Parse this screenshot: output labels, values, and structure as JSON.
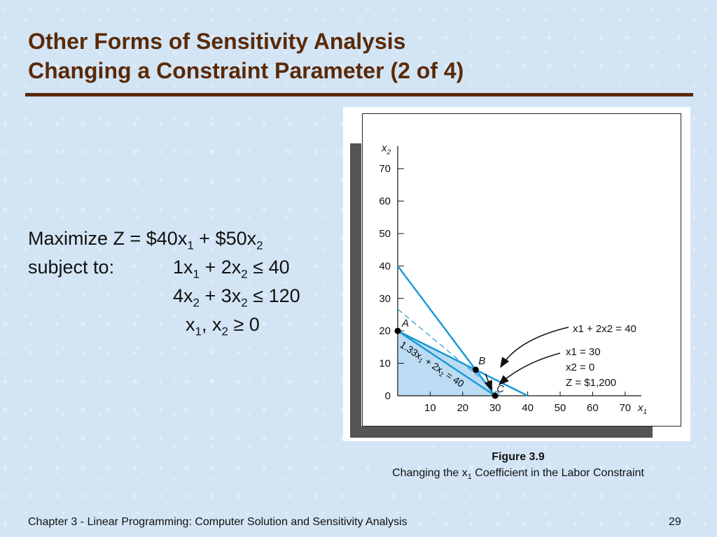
{
  "slide": {
    "title_line1": "Other Forms of Sensitivity Analysis",
    "title_line2": "Changing a Constraint Parameter (2 of 4)",
    "footer": "Chapter 3 - Linear Programming:  Computer Solution and Sensitivity Analysis",
    "page_number": "29"
  },
  "model": {
    "objective": {
      "prefix": "Maximize Z = $40x",
      "s1": "1",
      "mid": " + $50x",
      "s2": "2"
    },
    "c1": {
      "label": "subject to:",
      "a": "1x",
      "s1": "1",
      "b": " + 2x",
      "s2": "2",
      "rhs": " ≤ 40"
    },
    "c2": {
      "a": "4x",
      "s1": "2",
      "b": " + 3x",
      "s2": "2",
      "rhs": " ≤ 120"
    },
    "c3": {
      "a": "x",
      "s1": "1",
      "b": ", x",
      "s2": "2",
      "rhs": " ≥ 0"
    }
  },
  "figure": {
    "caption_title": "Figure 3.9",
    "caption_text_a": "Changing the x",
    "caption_sub": "1",
    "caption_text_b": " Coefficient in the Labor Constraint",
    "x_axis_label": "x1",
    "y_axis_label": "x2",
    "x_ticks": [
      "10",
      "20",
      "30",
      "40",
      "50",
      "60",
      "70"
    ],
    "y_ticks": [
      "0",
      "10",
      "20",
      "30",
      "40",
      "50",
      "60",
      "70"
    ],
    "point_labels": [
      "A",
      "B",
      "C"
    ],
    "annotation_line": "x1 + 2x2 = 40",
    "annotation_solution": [
      "x1  = 30",
      "x2  = 0",
      "Z  = $1,200"
    ],
    "new_constraint_label": "1.33x1 + 2x2 = 40",
    "colors": {
      "line": "#1a9ad6",
      "feasible": "#bcdcf3",
      "point": "#000000"
    }
  },
  "chart_data": {
    "type": "line",
    "xlabel": "x1",
    "ylabel": "x2",
    "xlim": [
      0,
      75
    ],
    "ylim": [
      0,
      75
    ],
    "series": [
      {
        "name": "x1 + 2x2 = 40",
        "points": [
          [
            0,
            20
          ],
          [
            40,
            0
          ]
        ],
        "style": "solid"
      },
      {
        "name": "1.33x1 + 2x2 = 40",
        "points": [
          [
            0,
            20
          ],
          [
            30,
            0
          ]
        ],
        "style": "solid"
      },
      {
        "points": [
          [
            0,
            40
          ],
          [
            30,
            0
          ]
        ],
        "style": "solid"
      },
      {
        "points": [
          [
            0,
            26.7
          ],
          [
            32,
            0
          ]
        ],
        "style": "dashed"
      }
    ],
    "points": [
      {
        "label": "A",
        "x": 0,
        "y": 20
      },
      {
        "label": "B",
        "x": 24,
        "y": 8
      },
      {
        "label": "C",
        "x": 30,
        "y": 0
      }
    ]
  }
}
